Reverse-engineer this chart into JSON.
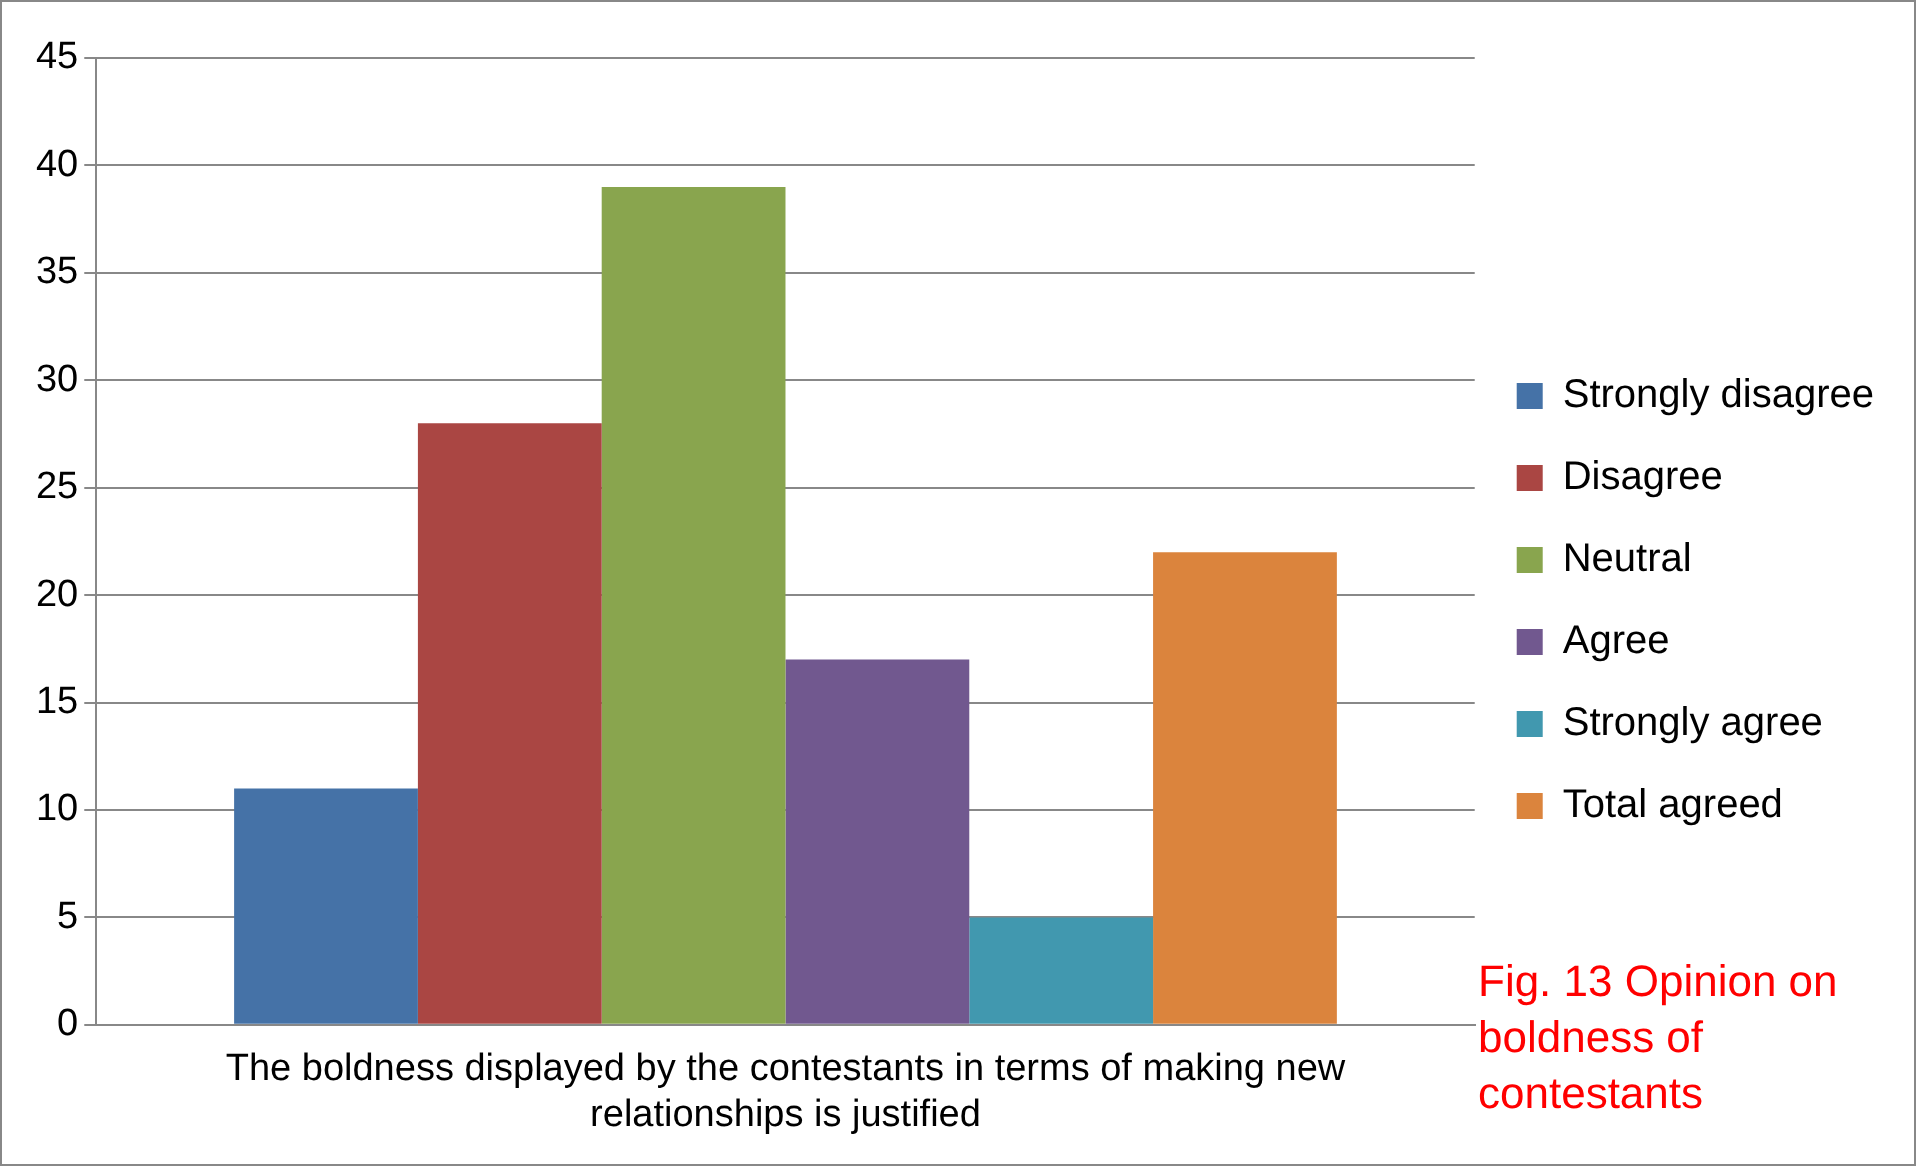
{
  "chart_data": {
    "type": "bar",
    "categories": [
      "The boldness displayed by the contestants in terms of making new relationships is justified"
    ],
    "series": [
      {
        "name": "Strongly disagree",
        "color": "#4572a7",
        "values": [
          11
        ]
      },
      {
        "name": "Disagree",
        "color": "#aa4643",
        "values": [
          28
        ]
      },
      {
        "name": "Neutral",
        "color": "#89a54e",
        "values": [
          39
        ]
      },
      {
        "name": "Agree",
        "color": "#71588f",
        "values": [
          17
        ]
      },
      {
        "name": "Strongly agree",
        "color": "#4198af",
        "values": [
          5
        ]
      },
      {
        "name": "Total agreed",
        "color": "#db843d",
        "values": [
          22
        ]
      }
    ],
    "ylim": [
      0,
      45
    ],
    "yticks": [
      0,
      5,
      10,
      15,
      20,
      25,
      30,
      35,
      40,
      45
    ],
    "grid": "y",
    "legend": "right",
    "annotations": [
      "Fig. 13 Opinion on boldness of contestants"
    ]
  }
}
